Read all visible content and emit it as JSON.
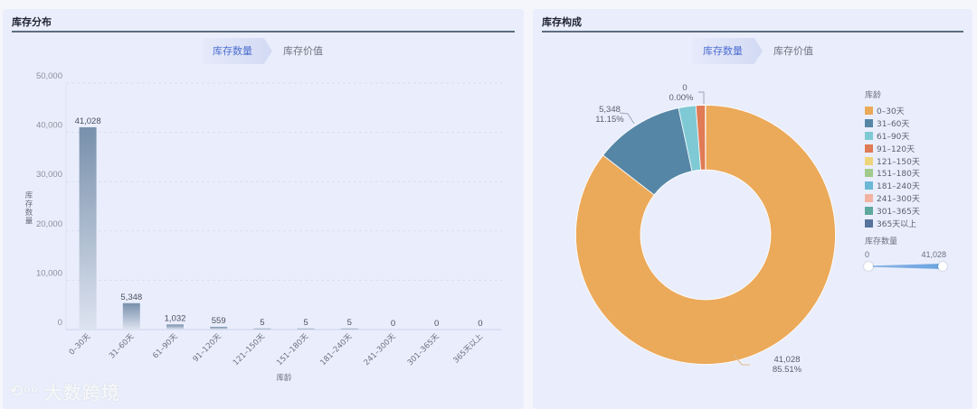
{
  "left_panel": {
    "title": "库存分布",
    "tabs": [
      {
        "label": "库存数量",
        "active": true
      },
      {
        "label": "库存价值",
        "active": false
      }
    ]
  },
  "right_panel": {
    "title": "库存构成",
    "tabs": [
      {
        "label": "库存数量",
        "active": true
      },
      {
        "label": "库存价值",
        "active": false
      }
    ],
    "legend": {
      "title": "库龄",
      "items": [
        {
          "label": "0–30天",
          "color": "#eba95a"
        },
        {
          "label": "31–60天",
          "color": "#5686a6"
        },
        {
          "label": "61–90天",
          "color": "#7fc9d5"
        },
        {
          "label": "91–120天",
          "color": "#e07b55"
        },
        {
          "label": "121–150天",
          "color": "#eed57a"
        },
        {
          "label": "151–180天",
          "color": "#a1cb8a"
        },
        {
          "label": "181–240天",
          "color": "#6ab7d6"
        },
        {
          "label": "241–300天",
          "color": "#f2b3a1"
        },
        {
          "label": "301–365天",
          "color": "#5fa89d"
        },
        {
          "label": "365天以上",
          "color": "#58739d"
        }
      ]
    },
    "visual_map": {
      "title": "库存数量",
      "min_label": "0",
      "max_label": "41,028"
    }
  },
  "watermark": {
    "logo": "⟲ᵒᵒ",
    "text": "大数跨境"
  },
  "chart_data": [
    {
      "type": "bar",
      "title": "库存分布",
      "categories": [
        "0–30天",
        "31–60天",
        "61–90天",
        "91–120天",
        "121–150天",
        "151–180天",
        "181–240天",
        "241–300天",
        "301–365天",
        "365天以上"
      ],
      "values": [
        41028,
        5348,
        1032,
        559,
        5,
        5,
        5,
        0,
        0,
        0
      ],
      "value_labels": [
        "41,028",
        "5,348",
        "1,032",
        "559",
        "5",
        "5",
        "5",
        "0",
        "0",
        "0"
      ],
      "xlabel": "库龄",
      "ylabel": "库存数量",
      "ylim": [
        0,
        50000
      ],
      "yticks": [
        0,
        10000,
        20000,
        30000,
        40000,
        50000
      ],
      "ytick_labels": [
        "0",
        "10,000",
        "20,000",
        "30,000",
        "40,000",
        "50,000"
      ],
      "grid": true,
      "bar_gradient": [
        "#7890ab",
        "#dde3f0"
      ]
    },
    {
      "type": "pie",
      "subtype": "donut",
      "title": "库存构成",
      "categories": [
        "0–30天",
        "31–60天",
        "61–90天",
        "91–120天",
        "121–150天",
        "151–180天",
        "181–240天",
        "241–300天",
        "301–365天",
        "365天以上"
      ],
      "values": [
        41028,
        5348,
        1032,
        559,
        5,
        5,
        5,
        0,
        0,
        0
      ],
      "labels_shown": [
        {
          "category": "0–30天",
          "value": "41,028",
          "percent": "85.51%"
        },
        {
          "category": "31–60天",
          "value": "5,348",
          "percent": "11.15%"
        },
        {
          "category": "365天以上",
          "value": "0",
          "percent": "0.00%"
        }
      ],
      "legend_position": "right"
    }
  ]
}
